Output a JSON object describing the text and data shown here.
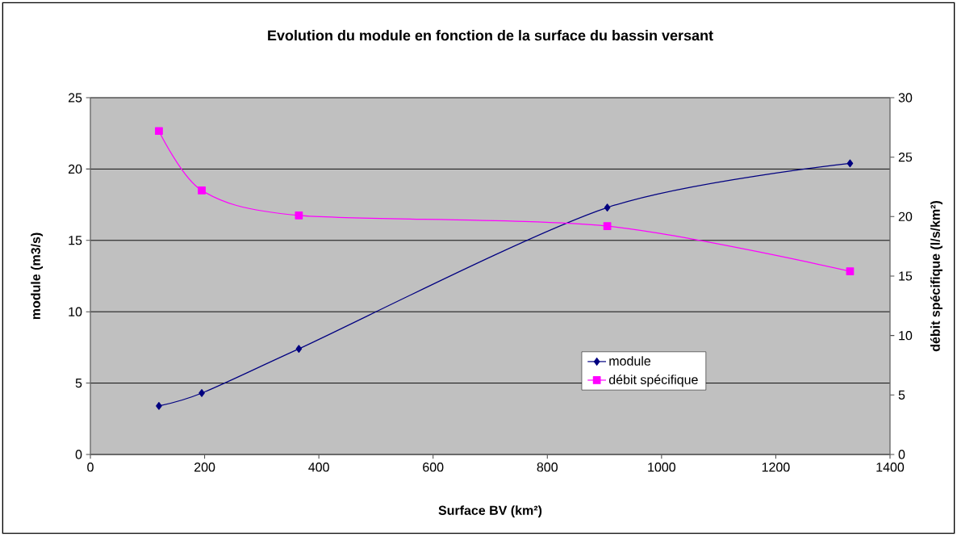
{
  "chart_data": {
    "type": "line",
    "title": "Evolution du module en fonction de la surface du bassin versant",
    "xlabel": "Surface BV (km²)",
    "ylabel": "module (m3/s)",
    "y2label": "débit spécifique (l/s/km²)",
    "x": [
      120,
      195,
      365,
      905,
      1330
    ],
    "xlim": [
      0,
      1400
    ],
    "xticks": [
      0,
      200,
      400,
      600,
      800,
      1000,
      1200,
      1400
    ],
    "ylim": [
      0,
      25
    ],
    "yticks": [
      0,
      5,
      10,
      15,
      20,
      25
    ],
    "y2lim": [
      0,
      30
    ],
    "y2ticks": [
      0,
      5,
      10,
      15,
      20,
      25,
      30
    ],
    "grid": "y",
    "legend": "bottom right",
    "line_style": "solid",
    "series": [
      {
        "name": "module",
        "color": "#000080",
        "marker": "diamond",
        "values": [
          3.4,
          4.3,
          7.4,
          17.3,
          20.4
        ]
      },
      {
        "name": "débit spécifique",
        "color": "#ff00ff",
        "marker": "square",
        "axis": "y2",
        "values": [
          27.2,
          22.2,
          20.1,
          19.2,
          15.4
        ]
      }
    ]
  }
}
